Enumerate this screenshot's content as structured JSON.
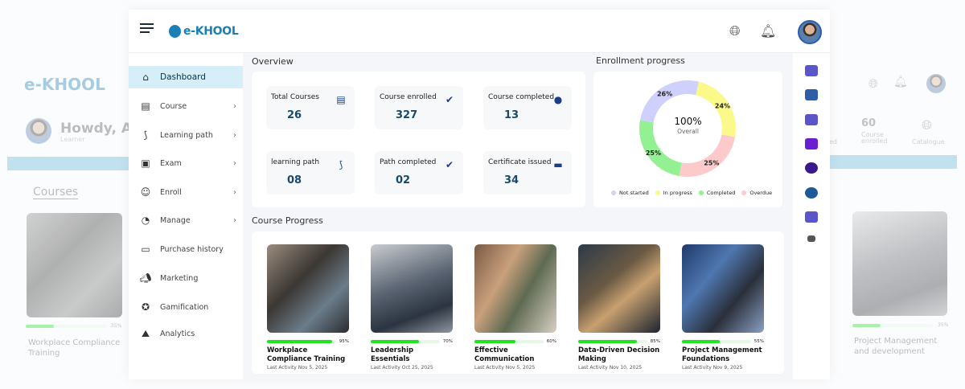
{
  "background_left": {
    "logo": "e-KHOOL",
    "greeting": "Howdy, Ai",
    "role": "Learner",
    "section": "Courses",
    "course": {
      "title": "Workplace Compliance Training",
      "progress": 35,
      "progress_label": "35%"
    }
  },
  "background_right": {
    "stat_value": "60",
    "stat_label": "Course enrolled",
    "stat_partial": "ed",
    "catalogue": "Catalogue",
    "course": {
      "title": "Project Management and development",
      "progress": 35,
      "progress_label": "35%"
    }
  },
  "header": {
    "logo": "e-KHOOL",
    "icons": [
      "menu-icon",
      "globe-icon",
      "bell-icon",
      "avatar"
    ]
  },
  "sidebar": {
    "items": [
      {
        "label": "Dashboard",
        "icon": "home-icon",
        "active": true,
        "chevron": false
      },
      {
        "label": "Course",
        "icon": "course-icon",
        "chevron": true
      },
      {
        "label": "Learning path",
        "icon": "path-icon",
        "chevron": true
      },
      {
        "label": "Exam",
        "icon": "exam-icon",
        "chevron": true
      },
      {
        "label": "Enroll",
        "icon": "enroll-icon",
        "chevron": true
      },
      {
        "label": "Manage",
        "icon": "wrench-icon",
        "chevron": true
      },
      {
        "label": "Purchase history",
        "icon": "briefcase-icon",
        "chevron": false
      },
      {
        "label": "Marketing",
        "icon": "megaphone-icon",
        "chevron": false
      },
      {
        "label": "Gamification",
        "icon": "star-badge-icon",
        "chevron": false
      },
      {
        "label": "Analytics",
        "icon": "analytics-icon",
        "chevron": false
      }
    ]
  },
  "overview": {
    "title": "Overview",
    "cards": [
      {
        "label": "Total Courses",
        "value": "26",
        "icon": "course-icon"
      },
      {
        "label": "Course enrolled",
        "value": "327",
        "icon": "user-check-icon"
      },
      {
        "label": "Course completed",
        "value": "13",
        "icon": "completed-icon"
      },
      {
        "label": "learning path",
        "value": "08",
        "icon": "path-icon"
      },
      {
        "label": "Path completed",
        "value": "02",
        "icon": "user-check-icon"
      },
      {
        "label": "Certificate issued",
        "value": "34",
        "icon": "certificate-icon"
      }
    ]
  },
  "enrollment": {
    "title": "Enrollment progress",
    "center_value": "100%",
    "center_label": "Overall"
  },
  "chart_data": {
    "type": "pie",
    "title": "Enrollment progress",
    "legend_position": "bottom",
    "series": [
      {
        "name": "Not started",
        "value": 26,
        "label": "26%",
        "color": "#cfd0fb"
      },
      {
        "name": "In progress",
        "value": 24,
        "label": "24%",
        "color": "#fbf98a"
      },
      {
        "name": "Completed",
        "value": 25,
        "label": "25%",
        "color": "#93f093"
      },
      {
        "name": "Overdue",
        "value": 25,
        "label": "25%",
        "color": "#fccaca"
      }
    ]
  },
  "course_progress": {
    "title": "Course Progress",
    "courses": [
      {
        "title": "Workplace Compliance Training",
        "progress": 95,
        "progress_label": "95%",
        "last_activity": "Last Activity Nov 5, 2025"
      },
      {
        "title": "Leadership Essentials",
        "progress": 70,
        "progress_label": "70%",
        "last_activity": "Last Activity Oct 25, 2025"
      },
      {
        "title": "Effective Communication",
        "progress": 60,
        "progress_label": "60%",
        "last_activity": "Last Activity Nov 5, 2025"
      },
      {
        "title": "Data-Driven Decision Making",
        "progress": 85,
        "progress_label": "85%",
        "last_activity": "Last Activity Nov 10, 2025"
      },
      {
        "title": "Project Management Foundations",
        "progress": 55,
        "progress_label": "55%",
        "last_activity": "Last Activity Nov 9, 2025"
      }
    ]
  },
  "right_bar": {
    "icons": [
      {
        "name": "graduation-cap-icon",
        "color": "#5a55c8"
      },
      {
        "name": "calendar-icon",
        "color": "#2f5ea8"
      },
      {
        "name": "video-room-icon",
        "color": "#5a55c8"
      },
      {
        "name": "chat-icon",
        "color": "#6a1fd0"
      },
      {
        "name": "community-icon",
        "color": "#3a1a8a"
      },
      {
        "name": "trend-icon",
        "color": "#1e5a9a"
      },
      {
        "name": "support-icon",
        "color": "#5a55c8"
      },
      {
        "name": "more-icon",
        "color": "#555555"
      }
    ]
  },
  "colors": {
    "accent": "#1b7fb6",
    "active_bg": "#d6eef8",
    "progress": "#1ee61e"
  }
}
